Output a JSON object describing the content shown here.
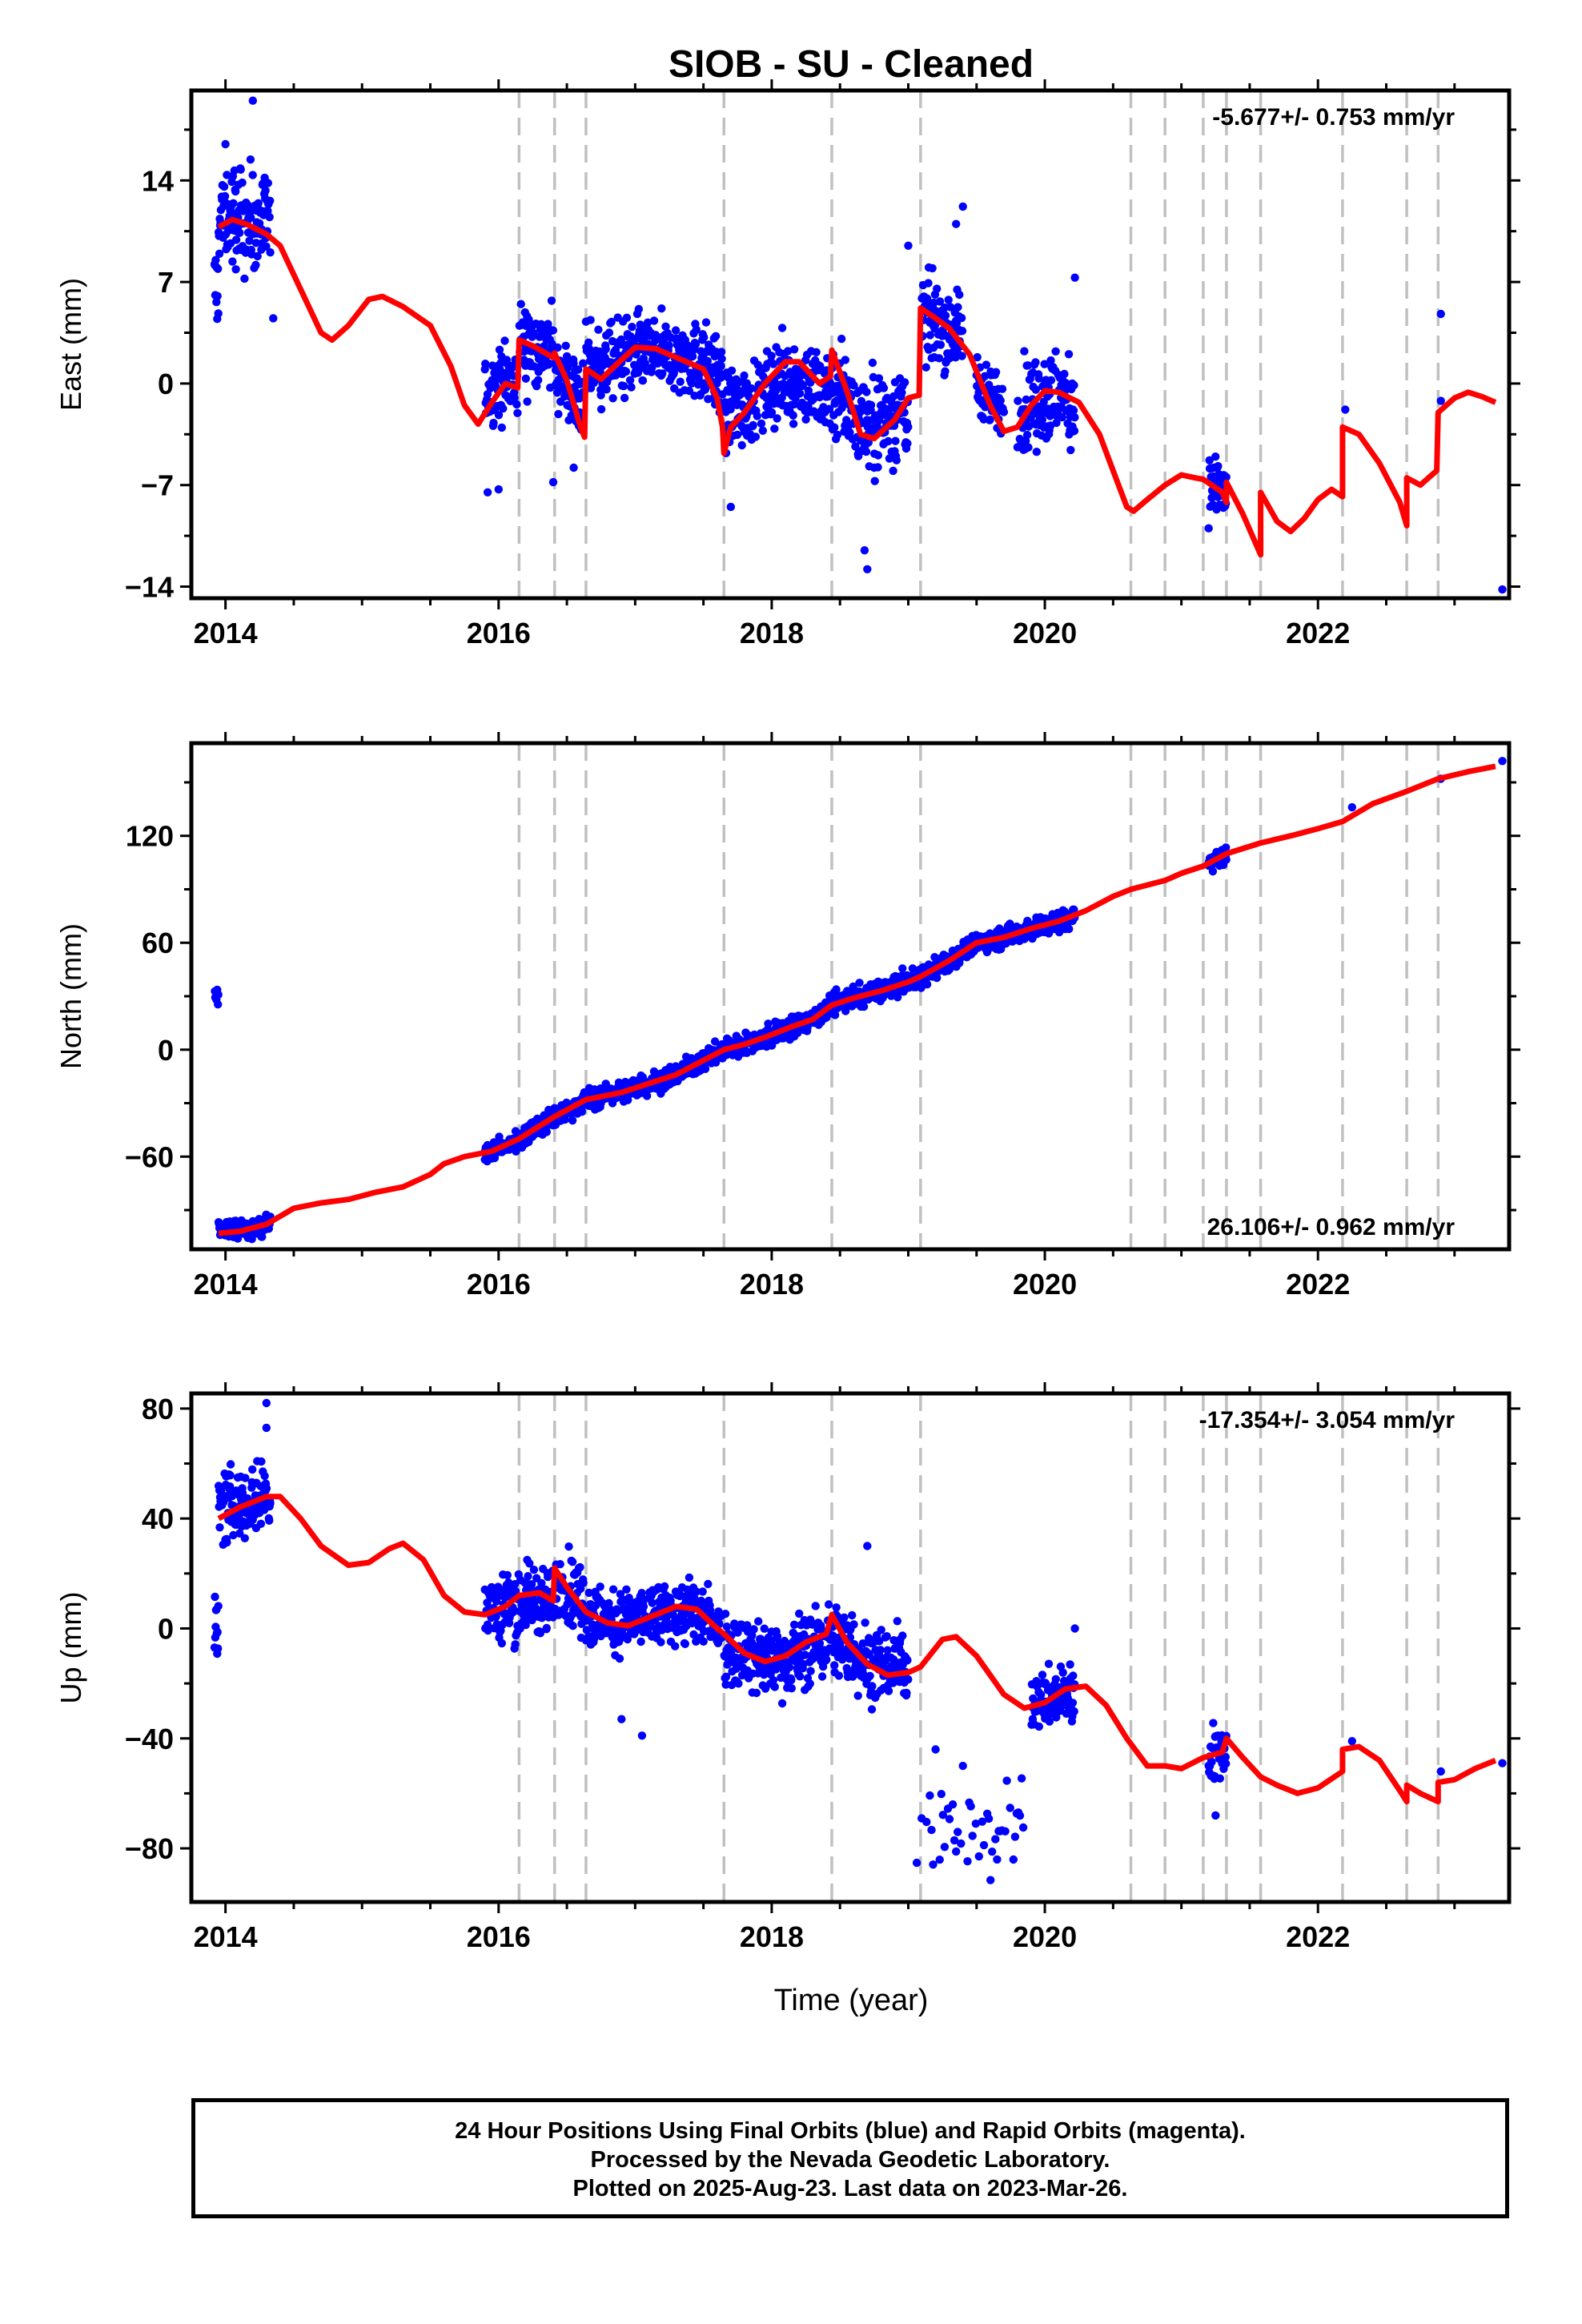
{
  "title": "SIOB  - SU - Cleaned",
  "xlabel": "Time (year)",
  "footer": {
    "line1": "24 Hour Positions Using Final Orbits (blue) and Rapid Orbits (magenta).",
    "line2": "Processed by the Nevada Geodetic Laboratory.",
    "line3": "Plotted on 2025-Aug-23. Last data on 2023-Mar-26."
  },
  "colors": {
    "data": "#0000ff",
    "model": "#ff0000",
    "offset_lines": "#c0c0c0"
  },
  "chart_data": [
    {
      "type": "scatter",
      "panel": "east",
      "ylabel": "East (mm)",
      "rate_label": "-5.677+/- 0.753 mm/yr",
      "rate_position": "top-right",
      "xlim": [
        2013.75,
        2023.4
      ],
      "ylim": [
        -14.8,
        20.2
      ],
      "yticks": [
        14,
        7,
        0,
        -7,
        -14
      ],
      "xticks": [
        2014,
        2016,
        2018,
        2020,
        2022
      ],
      "offset_epochs": [
        2016.15,
        2016.41,
        2016.64,
        2017.65,
        2018.44,
        2019.09,
        2020.63,
        2020.88,
        2021.16,
        2021.33,
        2021.58,
        2022.18,
        2022.65,
        2022.88
      ],
      "model": [
        [
          2013.95,
          10.8
        ],
        [
          2014.05,
          11.3
        ],
        [
          2014.15,
          11.0
        ],
        [
          2014.3,
          10.3
        ],
        [
          2014.4,
          9.5
        ],
        [
          2014.55,
          6.5
        ],
        [
          2014.7,
          3.5
        ],
        [
          2014.78,
          3.0
        ],
        [
          2014.9,
          4.0
        ],
        [
          2015.05,
          5.8
        ],
        [
          2015.15,
          6.0
        ],
        [
          2015.3,
          5.3
        ],
        [
          2015.5,
          4.0
        ],
        [
          2015.65,
          1.2
        ],
        [
          2015.75,
          -1.5
        ],
        [
          2015.85,
          -2.8
        ],
        [
          2015.95,
          -1.3
        ],
        [
          2016.05,
          0.0
        ],
        [
          2016.14,
          -0.3
        ],
        [
          2016.15,
          3.0
        ],
        [
          2016.25,
          2.6
        ],
        [
          2016.4,
          1.8
        ],
        [
          2016.41,
          2.1
        ],
        [
          2016.5,
          0.2
        ],
        [
          2016.6,
          -3.0
        ],
        [
          2016.63,
          -3.7
        ],
        [
          2016.64,
          1.0
        ],
        [
          2016.75,
          0.3
        ],
        [
          2016.85,
          1.2
        ],
        [
          2017.0,
          2.5
        ],
        [
          2017.15,
          2.4
        ],
        [
          2017.3,
          1.8
        ],
        [
          2017.5,
          1.0
        ],
        [
          2017.6,
          -1.0
        ],
        [
          2017.64,
          -3.0
        ],
        [
          2017.65,
          -4.8
        ],
        [
          2017.7,
          -3.0
        ],
        [
          2017.8,
          -2.0
        ],
        [
          2017.95,
          0.0
        ],
        [
          2018.1,
          1.5
        ],
        [
          2018.2,
          1.5
        ],
        [
          2018.35,
          0.0
        ],
        [
          2018.43,
          0.5
        ],
        [
          2018.44,
          2.3
        ],
        [
          2018.55,
          -0.5
        ],
        [
          2018.65,
          -3.5
        ],
        [
          2018.75,
          -3.8
        ],
        [
          2018.9,
          -2.5
        ],
        [
          2019.0,
          -1.0
        ],
        [
          2019.08,
          -0.8
        ],
        [
          2019.09,
          5.2
        ],
        [
          2019.2,
          4.5
        ],
        [
          2019.3,
          3.8
        ],
        [
          2019.45,
          2.0
        ],
        [
          2019.6,
          -1.5
        ],
        [
          2019.7,
          -3.3
        ],
        [
          2019.8,
          -3.0
        ],
        [
          2019.9,
          -1.5
        ],
        [
          2020.0,
          -0.5
        ],
        [
          2020.1,
          -0.6
        ],
        [
          2020.25,
          -1.3
        ],
        [
          2020.4,
          -3.5
        ],
        [
          2020.5,
          -6.0
        ],
        [
          2020.6,
          -8.5
        ],
        [
          2020.65,
          -8.8
        ],
        [
          2020.75,
          -8.0
        ],
        [
          2020.88,
          -7.0
        ],
        [
          2021.0,
          -6.3
        ],
        [
          2021.1,
          -6.5
        ],
        [
          2021.16,
          -6.6
        ],
        [
          2021.3,
          -7.5
        ],
        [
          2021.33,
          -8.2
        ],
        [
          2021.33,
          -6.8
        ],
        [
          2021.45,
          -9.0
        ],
        [
          2021.58,
          -11.8
        ],
        [
          2021.58,
          -7.5
        ],
        [
          2021.7,
          -9.5
        ],
        [
          2021.8,
          -10.2
        ],
        [
          2021.9,
          -9.3
        ],
        [
          2022.0,
          -8.0
        ],
        [
          2022.1,
          -7.3
        ],
        [
          2022.18,
          -7.8
        ],
        [
          2022.18,
          -3.0
        ],
        [
          2022.3,
          -3.5
        ],
        [
          2022.45,
          -5.5
        ],
        [
          2022.6,
          -8.2
        ],
        [
          2022.65,
          -9.8
        ],
        [
          2022.65,
          -6.5
        ],
        [
          2022.75,
          -7.0
        ],
        [
          2022.87,
          -6.0
        ],
        [
          2022.88,
          -2.0
        ],
        [
          2023.0,
          -1.0
        ],
        [
          2023.1,
          -0.6
        ],
        [
          2023.2,
          -0.9
        ],
        [
          2023.3,
          -1.3
        ]
      ],
      "segments": [
        {
          "t0": 2013.92,
          "t1": 2014.33,
          "center": 11.5,
          "spread": 2.4
        },
        {
          "t0": 2015.9,
          "t1": 2016.14,
          "center": 0.2,
          "spread": 1.6
        },
        {
          "t0": 2016.15,
          "t1": 2016.4,
          "center": 2.5,
          "spread": 1.8
        },
        {
          "t0": 2016.41,
          "t1": 2016.63,
          "center": 0.0,
          "spread": 1.8
        },
        {
          "t0": 2016.64,
          "t1": 2017.64,
          "center": 1.8,
          "spread": 1.8
        },
        {
          "t0": 2017.65,
          "t1": 2018.43,
          "center": -0.8,
          "spread": 2.0
        },
        {
          "t0": 2018.44,
          "t1": 2019.0,
          "center": -2.0,
          "spread": 2.2
        },
        {
          "t0": 2019.1,
          "t1": 2019.4,
          "center": 3.8,
          "spread": 1.8
        },
        {
          "t0": 2019.5,
          "t1": 2019.7,
          "center": -0.5,
          "spread": 1.5
        },
        {
          "t0": 2019.8,
          "t1": 2020.22,
          "center": -1.2,
          "spread": 2.2
        },
        {
          "t0": 2021.2,
          "t1": 2021.33,
          "center": -7.5,
          "spread": 1.6
        }
      ],
      "outliers": [
        [
          2014.2,
          19.5
        ],
        [
          2014.0,
          16.5
        ],
        [
          2014.35,
          4.5
        ],
        [
          2015.92,
          -7.5
        ],
        [
          2016.0,
          -7.3
        ],
        [
          2016.4,
          -6.8
        ],
        [
          2016.55,
          -5.8
        ],
        [
          2017.7,
          -8.5
        ],
        [
          2018.7,
          -12.8
        ],
        [
          2018.68,
          -11.5
        ],
        [
          2019.0,
          9.5
        ],
        [
          2019.15,
          8.0
        ],
        [
          2019.4,
          12.2
        ],
        [
          2019.35,
          11.0
        ],
        [
          2020.22,
          7.3
        ],
        [
          2022.9,
          4.8
        ],
        [
          2022.2,
          -1.8
        ],
        [
          2022.9,
          -1.2
        ],
        [
          2023.35,
          -14.2
        ]
      ]
    },
    {
      "type": "scatter",
      "panel": "north",
      "ylabel": "North (mm)",
      "rate_label": "26.106+/- 0.962 mm/yr",
      "rate_position": "bottom-right",
      "xlim": [
        2013.75,
        2023.4
      ],
      "ylim": [
        -112,
        172
      ],
      "yticks": [
        120,
        60,
        0,
        -60
      ],
      "xticks": [
        2014,
        2016,
        2018,
        2020,
        2022
      ],
      "offset_epochs": [
        2016.15,
        2016.41,
        2016.64,
        2017.65,
        2018.44,
        2019.09,
        2020.63,
        2020.88,
        2021.16,
        2021.33,
        2021.58,
        2022.18,
        2022.65,
        2022.88
      ],
      "model": [
        [
          2013.95,
          -103
        ],
        [
          2014.1,
          -102
        ],
        [
          2014.3,
          -98
        ],
        [
          2014.5,
          -89
        ],
        [
          2014.7,
          -86
        ],
        [
          2014.9,
          -84
        ],
        [
          2015.1,
          -80
        ],
        [
          2015.3,
          -77
        ],
        [
          2015.5,
          -70
        ],
        [
          2015.6,
          -64
        ],
        [
          2015.75,
          -60
        ],
        [
          2015.95,
          -57
        ],
        [
          2016.15,
          -50
        ],
        [
          2016.4,
          -38
        ],
        [
          2016.64,
          -28
        ],
        [
          2016.9,
          -24
        ],
        [
          2017.1,
          -19
        ],
        [
          2017.3,
          -14
        ],
        [
          2017.5,
          -6
        ],
        [
          2017.65,
          0
        ],
        [
          2017.8,
          3
        ],
        [
          2017.95,
          7
        ],
        [
          2018.15,
          13
        ],
        [
          2018.3,
          17
        ],
        [
          2018.44,
          25
        ],
        [
          2018.6,
          29
        ],
        [
          2018.8,
          33
        ],
        [
          2019.0,
          38
        ],
        [
          2019.09,
          41
        ],
        [
          2019.3,
          50
        ],
        [
          2019.5,
          60
        ],
        [
          2019.7,
          63
        ],
        [
          2019.9,
          68
        ],
        [
          2020.1,
          72
        ],
        [
          2020.3,
          78
        ],
        [
          2020.5,
          86
        ],
        [
          2020.63,
          90
        ],
        [
          2020.88,
          95
        ],
        [
          2021.0,
          99
        ],
        [
          2021.16,
          103
        ],
        [
          2021.33,
          110
        ],
        [
          2021.58,
          116
        ],
        [
          2021.8,
          120
        ],
        [
          2022.0,
          124
        ],
        [
          2022.18,
          128
        ],
        [
          2022.4,
          138
        ],
        [
          2022.65,
          145
        ],
        [
          2022.88,
          152
        ],
        [
          2023.1,
          156
        ],
        [
          2023.3,
          159
        ]
      ],
      "segments": [
        {
          "t0": 2013.92,
          "t1": 2014.33,
          "center": -100,
          "spread": 4
        },
        {
          "t0": 2015.9,
          "t1": 2020.22,
          "center": 0,
          "spread": 4,
          "follow_model": true
        },
        {
          "t0": 2021.2,
          "t1": 2021.33,
          "center": 0,
          "spread": 4,
          "follow_model": true
        }
      ],
      "outliers": [
        [
          2022.25,
          136
        ],
        [
          2022.9,
          152
        ],
        [
          2023.35,
          162
        ]
      ]
    },
    {
      "type": "scatter",
      "panel": "up",
      "ylabel": "Up (mm)",
      "rate_label": "-17.354+/- 3.054 mm/yr",
      "rate_position": "top-right",
      "xlim": [
        2013.75,
        2023.4
      ],
      "ylim": [
        -99.5,
        85.5
      ],
      "yticks": [
        80,
        40,
        0,
        -40,
        -80
      ],
      "xticks": [
        2014,
        2016,
        2018,
        2020,
        2022
      ],
      "offset_epochs": [
        2016.15,
        2016.41,
        2016.64,
        2017.65,
        2018.44,
        2019.09,
        2020.63,
        2020.88,
        2021.16,
        2021.33,
        2021.58,
        2022.18,
        2022.65,
        2022.88
      ],
      "model": [
        [
          2013.95,
          40
        ],
        [
          2014.1,
          44
        ],
        [
          2014.3,
          48
        ],
        [
          2014.4,
          48
        ],
        [
          2014.55,
          40
        ],
        [
          2014.7,
          30
        ],
        [
          2014.9,
          23
        ],
        [
          2015.05,
          24
        ],
        [
          2015.2,
          29
        ],
        [
          2015.3,
          31
        ],
        [
          2015.45,
          25
        ],
        [
          2015.6,
          12
        ],
        [
          2015.75,
          6
        ],
        [
          2015.9,
          5
        ],
        [
          2016.05,
          8
        ],
        [
          2016.15,
          12
        ],
        [
          2016.3,
          13
        ],
        [
          2016.4,
          10
        ],
        [
          2016.41,
          22
        ],
        [
          2016.5,
          15
        ],
        [
          2016.64,
          6
        ],
        [
          2016.8,
          2
        ],
        [
          2016.95,
          1
        ],
        [
          2017.1,
          4
        ],
        [
          2017.3,
          8
        ],
        [
          2017.45,
          7
        ],
        [
          2017.6,
          0
        ],
        [
          2017.65,
          -2
        ],
        [
          2017.8,
          -9
        ],
        [
          2017.95,
          -12
        ],
        [
          2018.1,
          -10
        ],
        [
          2018.25,
          -5
        ],
        [
          2018.4,
          -2
        ],
        [
          2018.44,
          5
        ],
        [
          2018.55,
          -5
        ],
        [
          2018.7,
          -13
        ],
        [
          2018.85,
          -17
        ],
        [
          2019.0,
          -16
        ],
        [
          2019.09,
          -14
        ],
        [
          2019.25,
          -4
        ],
        [
          2019.35,
          -3
        ],
        [
          2019.5,
          -10
        ],
        [
          2019.7,
          -24
        ],
        [
          2019.85,
          -29
        ],
        [
          2020.0,
          -27
        ],
        [
          2020.15,
          -22
        ],
        [
          2020.3,
          -21
        ],
        [
          2020.45,
          -28
        ],
        [
          2020.6,
          -40
        ],
        [
          2020.63,
          -42
        ],
        [
          2020.75,
          -50
        ],
        [
          2020.88,
          -50
        ],
        [
          2021.0,
          -51
        ],
        [
          2021.16,
          -47
        ],
        [
          2021.3,
          -45
        ],
        [
          2021.33,
          -40
        ],
        [
          2021.45,
          -47
        ],
        [
          2021.58,
          -54
        ],
        [
          2021.7,
          -57
        ],
        [
          2021.85,
          -60
        ],
        [
          2022.0,
          -58
        ],
        [
          2022.18,
          -52
        ],
        [
          2022.18,
          -44
        ],
        [
          2022.3,
          -43
        ],
        [
          2022.45,
          -48
        ],
        [
          2022.6,
          -59
        ],
        [
          2022.65,
          -63
        ],
        [
          2022.65,
          -57
        ],
        [
          2022.75,
          -60
        ],
        [
          2022.88,
          -63
        ],
        [
          2022.88,
          -56
        ],
        [
          2023.0,
          -55
        ],
        [
          2023.15,
          -51
        ],
        [
          2023.3,
          -48
        ]
      ],
      "segments": [
        {
          "t0": 2013.92,
          "t1": 2014.33,
          "center": 47,
          "spread": 9
        },
        {
          "t0": 2015.9,
          "t1": 2016.4,
          "center": 8,
          "spread": 9
        },
        {
          "t0": 2016.41,
          "t1": 2016.64,
          "center": 14,
          "spread": 9
        },
        {
          "t0": 2016.64,
          "t1": 2017.64,
          "center": 4,
          "spread": 8
        },
        {
          "t0": 2017.65,
          "t1": 2018.43,
          "center": -10,
          "spread": 9
        },
        {
          "t0": 2018.44,
          "t1": 2019.0,
          "center": -10,
          "spread": 9
        },
        {
          "t0": 2019.9,
          "t1": 2020.22,
          "center": -25,
          "spread": 7
        },
        {
          "t0": 2021.2,
          "t1": 2021.33,
          "center": -45,
          "spread": 7
        }
      ],
      "outlier_cluster": {
        "t0": 2019.05,
        "t1": 2019.85,
        "center": -73,
        "spread": 12
      },
      "outliers": [
        [
          2014.3,
          82
        ],
        [
          2014.3,
          73
        ],
        [
          2017.05,
          -39
        ],
        [
          2016.9,
          -33
        ],
        [
          2018.7,
          30
        ],
        [
          2019.2,
          -44
        ],
        [
          2019.4,
          -50
        ],
        [
          2020.22,
          0
        ],
        [
          2021.25,
          -68
        ],
        [
          2022.25,
          -41
        ],
        [
          2022.9,
          -52
        ],
        [
          2023.35,
          -49
        ]
      ]
    }
  ]
}
